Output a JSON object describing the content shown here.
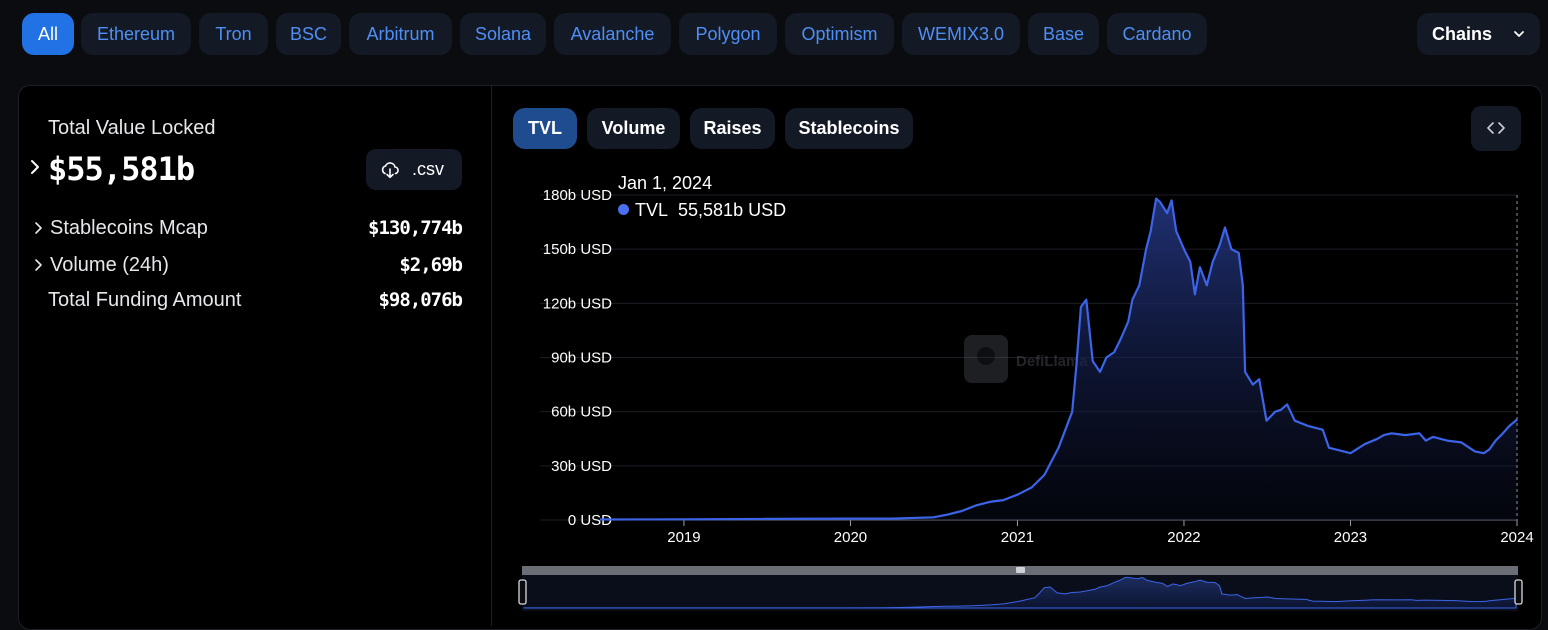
{
  "chain_tabs": [
    {
      "label": "All",
      "active": true
    },
    {
      "label": "Ethereum"
    },
    {
      "label": "Tron"
    },
    {
      "label": "BSC"
    },
    {
      "label": "Arbitrum"
    },
    {
      "label": "Solana"
    },
    {
      "label": "Avalanche"
    },
    {
      "label": "Polygon"
    },
    {
      "label": "Optimism"
    },
    {
      "label": "WEMIX3.0"
    },
    {
      "label": "Base"
    },
    {
      "label": "Cardano"
    }
  ],
  "chains_dropdown": {
    "label": "Chains"
  },
  "summary": {
    "tvl_label": "Total Value Locked",
    "tvl_value": "$55,581b",
    "csv_label": ".csv",
    "rows": [
      {
        "label": "Stablecoins Mcap",
        "value": "$130,774b"
      },
      {
        "label": "Volume (24h)",
        "value": "$2,69b"
      },
      {
        "label": "Total Funding Amount",
        "value": "$98,076b"
      }
    ]
  },
  "chart_tabs": [
    {
      "label": "TVL",
      "active": true
    },
    {
      "label": "Volume"
    },
    {
      "label": "Raises"
    },
    {
      "label": "Stablecoins"
    }
  ],
  "tooltip": {
    "date": "Jan 1, 2024",
    "series": "TVL",
    "value": "55,581b USD"
  },
  "watermark": "DefiLlama",
  "colors": {
    "accent": "#2172e5",
    "line": "#3c64e8",
    "chip_bg": "#141a25",
    "chip_text": "#4f8ff5"
  },
  "icons": {
    "csv": "cloud-download-icon",
    "dropdown": "chevron-down-icon",
    "embed": "code-brackets-icon"
  },
  "chart_data": {
    "type": "area",
    "title": "",
    "xlabel": "",
    "ylabel": "",
    "x_ticks": [
      "2019",
      "2020",
      "2021",
      "2022",
      "2023",
      "2024"
    ],
    "y_ticks": [
      "0 USD",
      "30b USD",
      "60b USD",
      "90b USD",
      "120b USD",
      "150b USD",
      "180b USD"
    ],
    "xlim": [
      "2018-07-01",
      "2024-01-01"
    ],
    "ylim": [
      0,
      180
    ],
    "y_unit": "b USD",
    "grid": true,
    "series": [
      {
        "name": "TVL",
        "x": [
          "2018-07-01",
          "2019-01-01",
          "2019-07-01",
          "2020-01-01",
          "2020-04-01",
          "2020-07-01",
          "2020-08-01",
          "2020-09-01",
          "2020-10-01",
          "2020-11-01",
          "2020-12-01",
          "2021-01-01",
          "2021-02-01",
          "2021-03-01",
          "2021-04-01",
          "2021-05-01",
          "2021-05-10",
          "2021-05-20",
          "2021-06-01",
          "2021-06-15",
          "2021-07-01",
          "2021-07-15",
          "2021-08-01",
          "2021-08-15",
          "2021-09-01",
          "2021-09-10",
          "2021-09-25",
          "2021-10-10",
          "2021-10-20",
          "2021-11-01",
          "2021-11-10",
          "2021-11-25",
          "2021-12-05",
          "2021-12-15",
          "2022-01-01",
          "2022-01-15",
          "2022-01-25",
          "2022-02-05",
          "2022-02-20",
          "2022-03-05",
          "2022-03-20",
          "2022-04-01",
          "2022-04-15",
          "2022-05-01",
          "2022-05-10",
          "2022-05-15",
          "2022-06-01",
          "2022-06-15",
          "2022-07-01",
          "2022-07-20",
          "2022-08-01",
          "2022-08-15",
          "2022-09-01",
          "2022-10-01",
          "2022-11-01",
          "2022-11-15",
          "2022-12-01",
          "2023-01-01",
          "2023-02-01",
          "2023-03-01",
          "2023-03-15",
          "2023-04-01",
          "2023-05-01",
          "2023-06-01",
          "2023-06-15",
          "2023-07-01",
          "2023-08-01",
          "2023-09-01",
          "2023-10-01",
          "2023-10-20",
          "2023-11-01",
          "2023-11-15",
          "2023-12-01",
          "2023-12-15",
          "2024-01-01"
        ],
        "values": [
          0.3,
          0.4,
          0.6,
          0.8,
          0.8,
          1.5,
          3,
          5,
          8,
          10,
          11,
          14,
          18,
          25,
          40,
          60,
          85,
          118,
          122,
          88,
          82,
          90,
          93,
          100,
          110,
          122,
          130,
          150,
          160,
          178,
          176,
          170,
          177,
          160,
          150,
          143,
          125,
          140,
          130,
          143,
          152,
          162,
          150,
          148,
          130,
          82,
          75,
          78,
          55,
          60,
          61,
          64,
          55,
          52,
          50,
          40,
          39,
          37,
          42,
          45,
          47,
          48,
          47,
          48,
          44,
          46,
          44,
          43,
          38,
          37,
          39,
          44,
          48,
          52,
          55.6
        ]
      }
    ]
  }
}
